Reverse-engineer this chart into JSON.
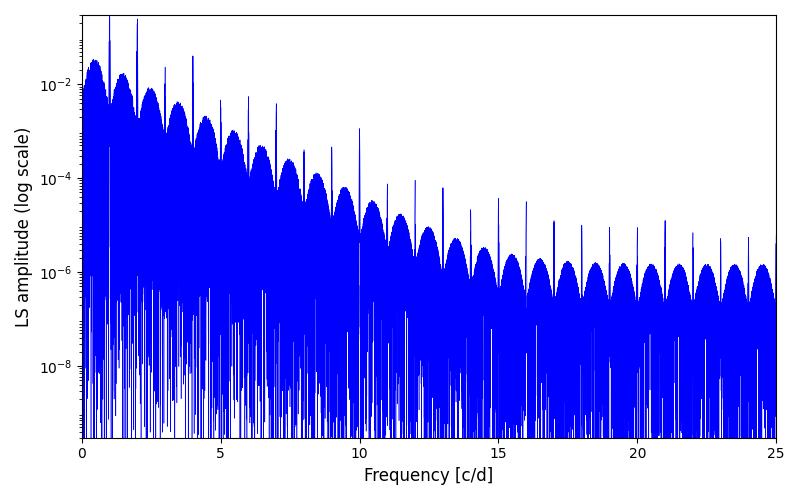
{
  "xlabel": "Frequency [c/d]",
  "ylabel": "LS amplitude (log scale)",
  "xlim": [
    0,
    25
  ],
  "ylim": [
    3e-10,
    0.3
  ],
  "line_color": "#0000ff",
  "line_width": 0.4,
  "background_color": "#ffffff",
  "freq_max": 25.0,
  "n_points": 100000,
  "seed": 1234,
  "yticks": [
    1e-08,
    1e-06,
    0.0001,
    0.01
  ],
  "xticks": [
    0,
    5,
    10,
    15,
    20,
    25
  ],
  "figsize": [
    8.0,
    5.0
  ],
  "dpi": 100
}
